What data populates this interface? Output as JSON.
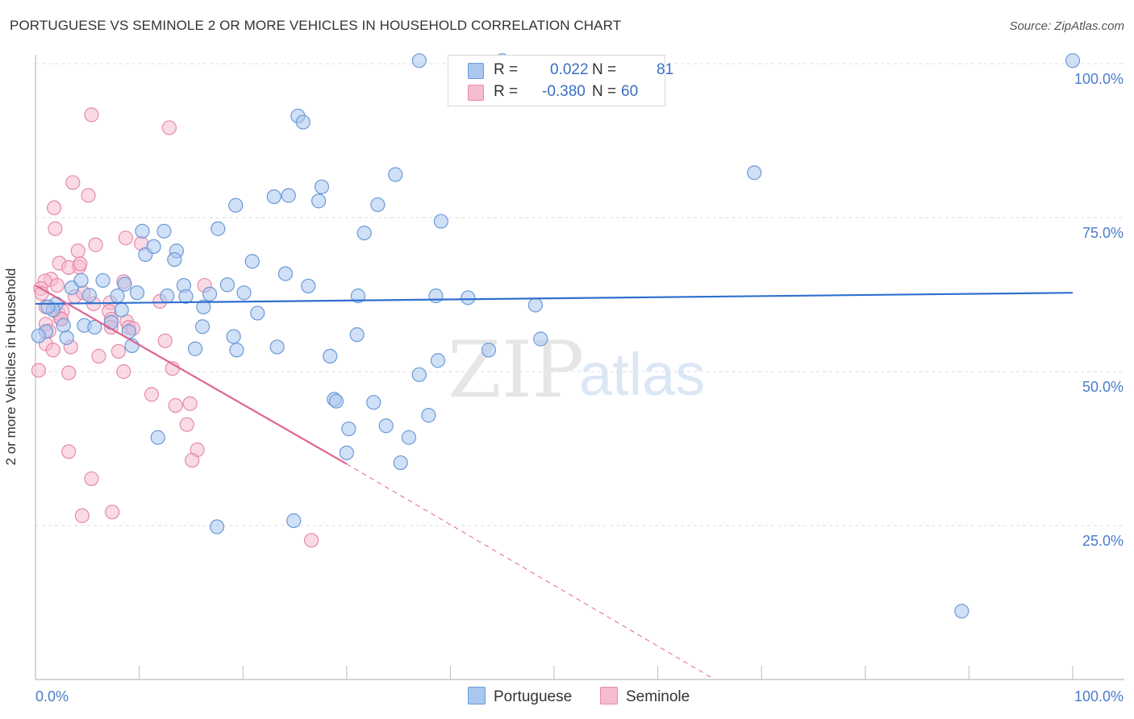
{
  "title": "PORTUGUESE VS SEMINOLE 2 OR MORE VEHICLES IN HOUSEHOLD CORRELATION CHART",
  "source": "Source: ZipAtlas.com",
  "watermark": {
    "zip": "ZIP",
    "atlas": "atlas"
  },
  "legend": {
    "portuguese": {
      "r_label": "R =",
      "r_value": "0.022",
      "n_label": "N =",
      "n_value": "81"
    },
    "seminole": {
      "r_label": "R =",
      "r_value": "-0.380",
      "n_label": "N =",
      "n_value": "60"
    }
  },
  "bottom_legend": {
    "portuguese": "Portuguese",
    "seminole": "Seminole"
  },
  "colors": {
    "portuguese_fill": "#a9c7ef",
    "portuguese_stroke": "#6b9ad8",
    "portuguese_line": "#2f6fcf",
    "seminole_fill": "#f6bcd0",
    "seminole_stroke": "#e68aac",
    "seminole_line": "#e0648f",
    "tick_text": "#4a7cc9",
    "grid": "#dddddd"
  },
  "chart_data": {
    "type": "scatter",
    "title": "PORTUGUESE VS SEMINOLE 2 OR MORE VEHICLES IN HOUSEHOLD CORRELATION CHART",
    "xlabel": "",
    "ylabel": "2 or more Vehicles in Household",
    "xlim": [
      0,
      100
    ],
    "ylim": [
      0,
      101
    ],
    "x_tick_labels": [
      "0.0%",
      "100.0%"
    ],
    "y_ticks": [
      25,
      50,
      75,
      100
    ],
    "y_tick_labels": [
      "25.0%",
      "50.0%",
      "75.0%",
      "100.0%"
    ],
    "grid": true,
    "series": [
      {
        "name": "Portuguese",
        "trend": {
          "x0": 0,
          "y0": 61.0,
          "x1": 100,
          "y1": 62.8,
          "dashed_from": null
        },
        "points": [
          [
            37.0,
            100.5
          ],
          [
            45.0,
            100.5
          ],
          [
            100.0,
            100.5
          ],
          [
            25.3,
            91.5
          ],
          [
            25.8,
            90.5
          ],
          [
            34.7,
            82.0
          ],
          [
            69.3,
            82.3
          ],
          [
            23.0,
            78.4
          ],
          [
            24.4,
            78.6
          ],
          [
            27.6,
            80.0
          ],
          [
            27.3,
            77.7
          ],
          [
            19.3,
            77.0
          ],
          [
            33.0,
            77.1
          ],
          [
            39.1,
            74.4
          ],
          [
            17.6,
            73.2
          ],
          [
            10.3,
            72.8
          ],
          [
            12.4,
            72.8
          ],
          [
            31.7,
            72.5
          ],
          [
            10.6,
            69.0
          ],
          [
            11.4,
            70.3
          ],
          [
            13.6,
            69.6
          ],
          [
            13.4,
            68.2
          ],
          [
            20.9,
            67.9
          ],
          [
            24.1,
            65.9
          ],
          [
            6.5,
            64.8
          ],
          [
            8.6,
            64.2
          ],
          [
            3.5,
            63.6
          ],
          [
            18.5,
            64.1
          ],
          [
            14.3,
            64.0
          ],
          [
            26.3,
            63.9
          ],
          [
            9.8,
            62.8
          ],
          [
            4.4,
            64.8
          ],
          [
            20.1,
            62.8
          ],
          [
            5.2,
            62.4
          ],
          [
            7.9,
            62.3
          ],
          [
            12.7,
            62.3
          ],
          [
            14.5,
            62.2
          ],
          [
            16.8,
            62.6
          ],
          [
            31.1,
            62.3
          ],
          [
            38.6,
            62.3
          ],
          [
            41.7,
            62.0
          ],
          [
            2.0,
            61.0
          ],
          [
            1.7,
            60.0
          ],
          [
            1.2,
            60.5
          ],
          [
            8.3,
            60.0
          ],
          [
            16.2,
            60.5
          ],
          [
            21.4,
            59.5
          ],
          [
            48.2,
            60.8
          ],
          [
            2.7,
            57.5
          ],
          [
            4.7,
            57.5
          ],
          [
            5.7,
            57.2
          ],
          [
            7.3,
            58.0
          ],
          [
            16.1,
            57.3
          ],
          [
            9.0,
            56.5
          ],
          [
            1.0,
            56.5
          ],
          [
            0.3,
            55.8
          ],
          [
            3.0,
            55.5
          ],
          [
            19.1,
            55.7
          ],
          [
            31.0,
            56.0
          ],
          [
            48.7,
            55.3
          ],
          [
            9.3,
            54.2
          ],
          [
            19.4,
            53.5
          ],
          [
            15.4,
            53.7
          ],
          [
            23.3,
            54.0
          ],
          [
            28.4,
            52.5
          ],
          [
            38.8,
            51.8
          ],
          [
            43.7,
            53.5
          ],
          [
            37.0,
            49.5
          ],
          [
            28.8,
            45.5
          ],
          [
            29.0,
            45.2
          ],
          [
            32.6,
            45.0
          ],
          [
            37.9,
            42.9
          ],
          [
            11.8,
            39.3
          ],
          [
            30.2,
            40.7
          ],
          [
            33.8,
            41.2
          ],
          [
            36.0,
            39.3
          ],
          [
            30.0,
            36.8
          ],
          [
            35.2,
            35.2
          ],
          [
            17.5,
            24.8
          ],
          [
            24.9,
            25.8
          ],
          [
            89.3,
            11.1
          ]
        ]
      },
      {
        "name": "Seminole",
        "trend": {
          "x0": 0,
          "y0": 64.0,
          "x1": 30.0,
          "y1": 35.0,
          "dashed_to_x": 65.5,
          "dashed_to_y": 0
        },
        "points": [
          [
            5.4,
            91.7
          ],
          [
            12.9,
            89.6
          ],
          [
            3.6,
            80.7
          ],
          [
            5.1,
            78.6
          ],
          [
            1.8,
            76.6
          ],
          [
            1.9,
            73.2
          ],
          [
            8.7,
            71.7
          ],
          [
            5.8,
            70.6
          ],
          [
            10.2,
            70.8
          ],
          [
            4.1,
            69.6
          ],
          [
            2.3,
            67.6
          ],
          [
            4.2,
            67.0
          ],
          [
            3.2,
            66.9
          ],
          [
            4.3,
            67.5
          ],
          [
            1.5,
            65.0
          ],
          [
            0.9,
            64.7
          ],
          [
            8.5,
            64.6
          ],
          [
            16.3,
            64.0
          ],
          [
            0.5,
            63.5
          ],
          [
            0.6,
            62.7
          ],
          [
            2.1,
            64.0
          ],
          [
            3.8,
            62.2
          ],
          [
            4.6,
            62.8
          ],
          [
            1.0,
            60.5
          ],
          [
            5.6,
            61.0
          ],
          [
            7.2,
            61.2
          ],
          [
            12.0,
            61.4
          ],
          [
            2.2,
            59.5
          ],
          [
            2.6,
            59.8
          ],
          [
            7.1,
            59.8
          ],
          [
            2.4,
            58.6
          ],
          [
            2.5,
            58.5
          ],
          [
            7.3,
            58.5
          ],
          [
            8.8,
            58.1
          ],
          [
            1.0,
            57.7
          ],
          [
            7.3,
            57.2
          ],
          [
            9.0,
            57.2
          ],
          [
            9.4,
            57.0
          ],
          [
            1.3,
            56.6
          ],
          [
            12.5,
            55.0
          ],
          [
            1.0,
            54.5
          ],
          [
            3.4,
            54.0
          ],
          [
            1.7,
            53.5
          ],
          [
            8.0,
            53.3
          ],
          [
            6.1,
            52.5
          ],
          [
            13.2,
            50.5
          ],
          [
            0.3,
            50.2
          ],
          [
            3.2,
            49.8
          ],
          [
            8.5,
            50.0
          ],
          [
            11.2,
            46.3
          ],
          [
            14.9,
            44.8
          ],
          [
            13.5,
            44.5
          ],
          [
            14.6,
            41.4
          ],
          [
            15.6,
            37.3
          ],
          [
            3.2,
            37.0
          ],
          [
            15.1,
            35.6
          ],
          [
            5.4,
            32.6
          ],
          [
            7.4,
            27.2
          ],
          [
            4.5,
            26.6
          ],
          [
            26.6,
            22.6
          ]
        ]
      }
    ]
  }
}
